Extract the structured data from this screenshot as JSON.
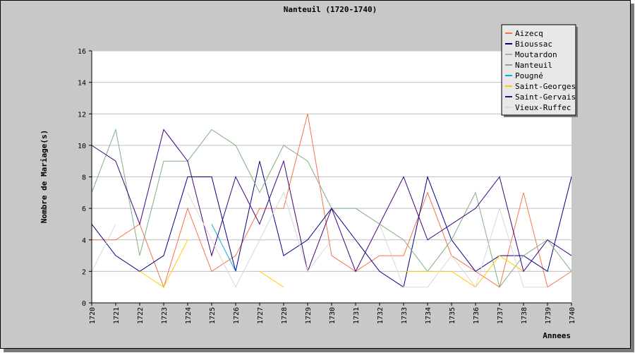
{
  "chart_data": {
    "type": "line",
    "title": "Nanteuil (1720-1740)",
    "xlabel": "Annees",
    "ylabel": "Nombre de Mariage(s)",
    "x": [
      "1720",
      "1721",
      "1722",
      "1723",
      "1724",
      "1725",
      "1726",
      "1727",
      "1728",
      "1729",
      "1730",
      "1731",
      "1732",
      "1733",
      "1734",
      "1735",
      "1736",
      "1737",
      "1738",
      "1739",
      "1740"
    ],
    "ylim": [
      0,
      16
    ],
    "yticks": [
      "0",
      "2",
      "4",
      "6",
      "8",
      "10",
      "12",
      "14",
      "16"
    ],
    "grid": true,
    "legend_position": "top-right",
    "series": [
      {
        "name": "Aizecq",
        "color": "#f4734e",
        "values": [
          4,
          4,
          5,
          1,
          6,
          2,
          3,
          6,
          6,
          12,
          3,
          2,
          3,
          3,
          7,
          3,
          2,
          1,
          7,
          1,
          2
        ]
      },
      {
        "name": "Bioussac",
        "color": "#000080",
        "values": [
          5,
          3,
          2,
          3,
          8,
          8,
          2,
          9,
          3,
          4,
          6,
          4,
          2,
          1,
          8,
          4,
          2,
          3,
          3,
          2,
          8
        ]
      },
      {
        "name": "Moutardon",
        "color": "#b0b090",
        "values": [
          null,
          null,
          null,
          null,
          null,
          null,
          null,
          null,
          null,
          null,
          null,
          null,
          null,
          null,
          null,
          null,
          null,
          null,
          null,
          null,
          null
        ]
      },
      {
        "name": "Nanteuil",
        "color": "#80b080",
        "values": [
          7,
          11,
          3,
          9,
          9,
          11,
          10,
          7,
          10,
          9,
          6,
          6,
          5,
          4,
          2,
          4,
          7,
          1,
          3,
          4,
          2
        ]
      },
      {
        "name": "Pougné",
        "color": "#00b0e0",
        "values": [
          null,
          null,
          null,
          null,
          null,
          5,
          2,
          null,
          null,
          null,
          null,
          null,
          null,
          null,
          null,
          null,
          null,
          null,
          null,
          null,
          null
        ]
      },
      {
        "name": "Saint-Georges",
        "color": "#ffcc00",
        "values": [
          null,
          null,
          2,
          1,
          4,
          null,
          null,
          2,
          1,
          null,
          null,
          null,
          null,
          2,
          2,
          2,
          1,
          3,
          2,
          null,
          2
        ]
      },
      {
        "name": "Saint-Gervais",
        "color": "#400080",
        "values": [
          10,
          9,
          5,
          11,
          9,
          3,
          8,
          5,
          9,
          2,
          6,
          2,
          5,
          8,
          4,
          5,
          6,
          8,
          2,
          4,
          3
        ]
      },
      {
        "name": "Vieux-Ruffec",
        "color": "#d8d8d8",
        "values": [
          2,
          5,
          null,
          null,
          7,
          4,
          1,
          4,
          7,
          2,
          4,
          null,
          5,
          1,
          1,
          3,
          1,
          6,
          1,
          1,
          null
        ]
      }
    ]
  }
}
